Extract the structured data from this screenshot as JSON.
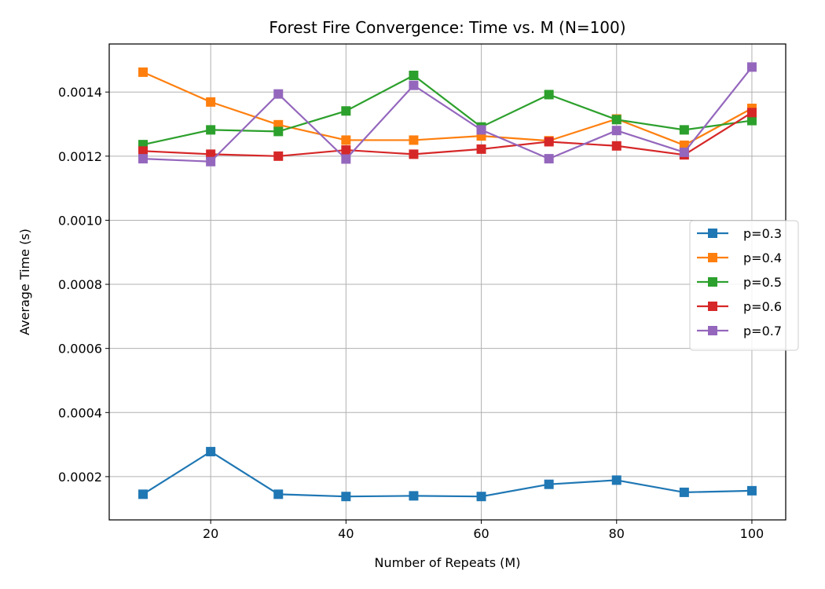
{
  "chart_data": {
    "type": "line",
    "title": "Forest Fire Convergence: Time vs. M (N=100)",
    "xlabel": "Number of Repeats (M)",
    "ylabel": "Average Time (s)",
    "xlim": [
      5,
      105
    ],
    "ylim": [
      6.5e-05,
      0.00155
    ],
    "xticks": [
      20,
      40,
      60,
      80,
      100
    ],
    "xtick_labels": [
      "20",
      "40",
      "60",
      "80",
      "100"
    ],
    "yticks": [
      0.0002,
      0.0004,
      0.0006,
      0.0008,
      0.001,
      0.0012,
      0.0014
    ],
    "ytick_labels": [
      "0.0002",
      "0.0004",
      "0.0006",
      "0.0008",
      "0.0010",
      "0.0012",
      "0.0014"
    ],
    "grid": true,
    "legend_position": "center-right",
    "marker": "square",
    "x": [
      10,
      20,
      30,
      40,
      50,
      60,
      70,
      80,
      90,
      100
    ],
    "series": [
      {
        "name": "p=0.3",
        "color": "#1f77b4",
        "values": [
          0.000145,
          0.000278,
          0.000145,
          0.000138,
          0.00014,
          0.000138,
          0.000176,
          0.000189,
          0.000151,
          0.000156
        ]
      },
      {
        "name": "p=0.4",
        "color": "#ff7f0e",
        "values": [
          0.001462,
          0.001369,
          0.001298,
          0.00125,
          0.00125,
          0.001263,
          0.001248,
          0.001316,
          0.001234,
          0.001349
        ]
      },
      {
        "name": "p=0.5",
        "color": "#2ca02c",
        "values": [
          0.001236,
          0.001282,
          0.001277,
          0.001341,
          0.001452,
          0.001291,
          0.001392,
          0.001314,
          0.001282,
          0.001311
        ]
      },
      {
        "name": "p=0.6",
        "color": "#d62728",
        "values": [
          0.001216,
          0.001206,
          0.0012,
          0.001219,
          0.001206,
          0.001222,
          0.001245,
          0.001232,
          0.001204,
          0.001336
        ]
      },
      {
        "name": "p=0.7",
        "color": "#9467bd",
        "values": [
          0.001192,
          0.001183,
          0.001394,
          0.001191,
          0.001421,
          0.001282,
          0.001192,
          0.00128,
          0.001212,
          0.001478
        ]
      }
    ]
  }
}
